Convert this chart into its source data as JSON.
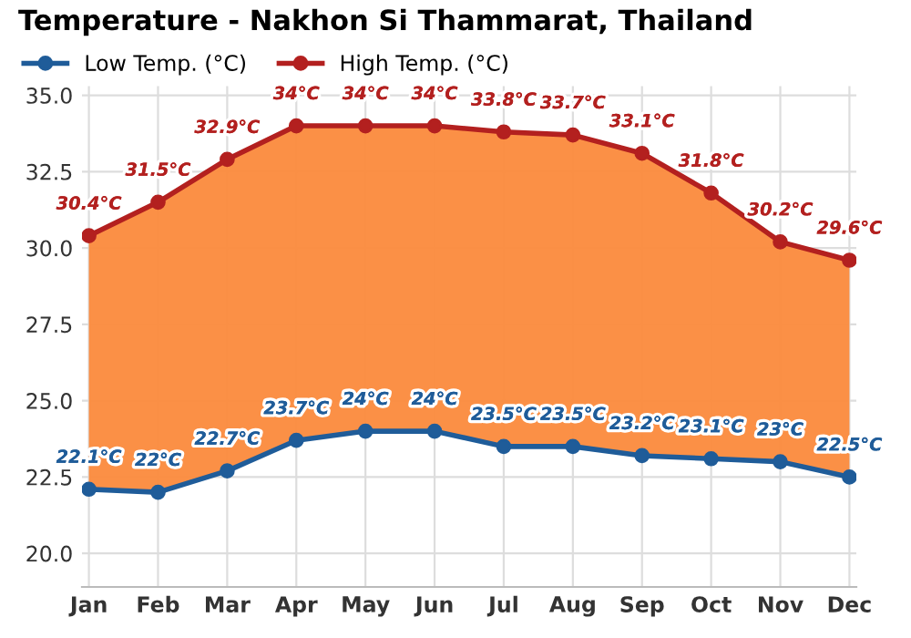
{
  "chart_data": {
    "type": "line",
    "title": "Temperature - Nakhon Si Thammarat, Thailand",
    "categories": [
      "Jan",
      "Feb",
      "Mar",
      "Apr",
      "May",
      "Jun",
      "Jul",
      "Aug",
      "Sep",
      "Oct",
      "Nov",
      "Dec"
    ],
    "series": [
      {
        "name": "Low Temp. (°C)",
        "color": "#1f5c99",
        "values": [
          22.1,
          22,
          22.7,
          23.7,
          24,
          24,
          23.5,
          23.5,
          23.2,
          23.1,
          23,
          22.5
        ],
        "value_labels": [
          "22.1°C",
          "22°C",
          "22.7°C",
          "23.7°C",
          "24°C",
          "24°C",
          "23.5°C",
          "23.5°C",
          "23.2°C",
          "23.1°C",
          "23°C",
          "22.5°C"
        ]
      },
      {
        "name": "High Temp. (°C)",
        "color": "#b3201f",
        "values": [
          30.4,
          31.5,
          32.9,
          34,
          34,
          34,
          33.8,
          33.7,
          33.1,
          31.8,
          30.2,
          29.6
        ],
        "value_labels": [
          "30.4°C",
          "31.5°C",
          "32.9°C",
          "34°C",
          "34°C",
          "34°C",
          "33.8°C",
          "33.7°C",
          "33.1°C",
          "31.8°C",
          "30.2°C",
          "29.6°C"
        ],
        "lower": [
          22.1,
          22,
          22.7,
          23.7,
          24,
          24,
          23.5,
          23.5,
          23.2,
          23.1,
          23,
          22.5
        ],
        "upper": [
          30.4,
          31.5,
          32.9,
          34,
          34,
          34,
          33.8,
          33.7,
          33.1,
          31.8,
          30.2,
          29.6
        ]
      }
    ],
    "ylim": [
      18.9,
      35.3
    ],
    "yticks": [
      {
        "value": 20,
        "label": "20.0"
      },
      {
        "value": 22.5,
        "label": "22.5"
      },
      {
        "value": 25,
        "label": "25.0"
      },
      {
        "value": 27.5,
        "label": "27.5"
      },
      {
        "value": 30,
        "label": "30.0"
      },
      {
        "value": 32.5,
        "label": "32.5"
      },
      {
        "value": 35,
        "label": "35.0"
      }
    ],
    "grid": true,
    "legend": "top left",
    "marker": "circle",
    "line_style": "solid"
  }
}
